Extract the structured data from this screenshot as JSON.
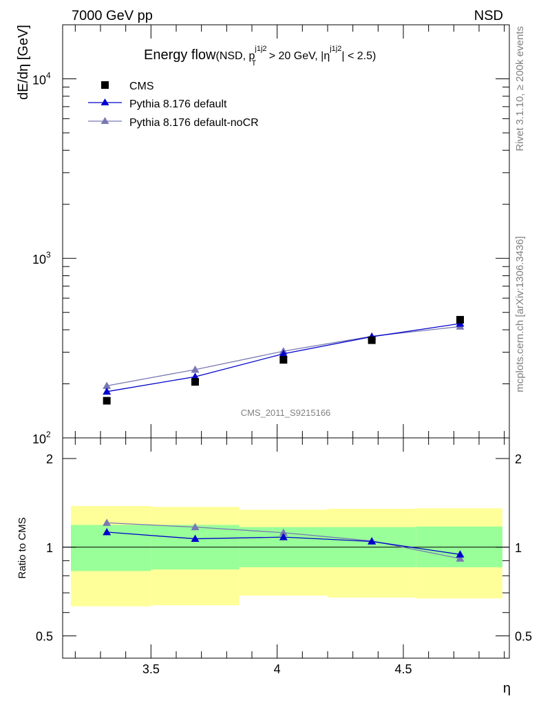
{
  "header": {
    "left": "7000 GeV pp",
    "right": "NSD"
  },
  "side_labels": {
    "rivet": "Rivet 3.1.10, ≥ 200k events",
    "mcplots": "mcplots.cern.ch [arXiv:1306.3436]"
  },
  "chart_data": {
    "type": "scatter",
    "title": {
      "main": "Energy flow",
      "detail_a": "(NSD, p",
      "detail_sup1": "j1j2",
      "detail_sub": "T",
      "detail_b": " > 20 GeV, |η",
      "detail_sup2": "j1j2",
      "detail_c": "| < 2.5)"
    },
    "watermark": "CMS_2011_S9215166",
    "ylabel": "dE/dη [GeV]",
    "xlabel": "η",
    "yscale": "log",
    "ylim": [
      100,
      20000
    ],
    "xlim": [
      3.15,
      4.92
    ],
    "x": [
      3.325,
      3.675,
      4.025,
      4.375,
      4.725
    ],
    "x_ticks": [
      {
        "v": 3.5,
        "label": "3.5"
      },
      {
        "v": 4.0,
        "label": "4"
      },
      {
        "v": 4.5,
        "label": "4.5"
      }
    ],
    "y_tick_labels": [
      {
        "base": "10",
        "exp": "2",
        "v": 100
      },
      {
        "base": "10",
        "exp": "3",
        "v": 1000
      },
      {
        "base": "10",
        "exp": "4",
        "v": 10000
      }
    ],
    "series": [
      {
        "name": "CMS",
        "color": "#000000",
        "marker": "square",
        "line": false,
        "values": [
          161,
          205,
          272,
          350,
          455
        ]
      },
      {
        "name": "Pythia 8.176 default",
        "color": "#0000cc",
        "marker": "triangle",
        "line": true,
        "values": [
          181,
          219,
          294,
          366,
          433
        ]
      },
      {
        "name": "Pythia 8.176 default-noCR",
        "color": "#7878b4",
        "marker": "triangle",
        "line": true,
        "values": [
          195,
          240,
          304,
          368,
          417
        ]
      }
    ],
    "ratio": {
      "ylabel": "Ratio to CMS",
      "ylim": [
        0.42,
        2.35
      ],
      "yscale": "log",
      "tick_labels": [
        {
          "v": 0.5,
          "label": "0.5"
        },
        {
          "v": 1,
          "label": "1"
        },
        {
          "v": 2,
          "label": "2"
        }
      ],
      "bands": [
        {
          "x0": 3.15,
          "x1": 3.5,
          "inner": [
            0.83,
            1.19
          ],
          "outer": [
            0.63,
            1.38
          ]
        },
        {
          "x0": 3.5,
          "x1": 3.85,
          "inner": [
            0.84,
            1.19
          ],
          "outer": [
            0.635,
            1.37
          ]
        },
        {
          "x0": 3.85,
          "x1": 4.2,
          "inner": [
            0.855,
            1.17
          ],
          "outer": [
            0.685,
            1.34
          ]
        },
        {
          "x0": 4.2,
          "x1": 4.55,
          "inner": [
            0.855,
            1.17
          ],
          "outer": [
            0.675,
            1.35
          ]
        },
        {
          "x0": 4.55,
          "x1": 4.9,
          "inner": [
            0.855,
            1.175
          ],
          "outer": [
            0.67,
            1.355
          ]
        }
      ],
      "series": [
        {
          "name": "Pythia 8.176 default",
          "color": "#0000cc",
          "values": [
            1.125,
            1.068,
            1.082,
            1.046,
            0.945
          ]
        },
        {
          "name": "Pythia 8.176 default-noCR",
          "color": "#7878b4",
          "values": [
            1.21,
            1.17,
            1.12,
            1.05,
            0.915
          ]
        }
      ]
    }
  }
}
